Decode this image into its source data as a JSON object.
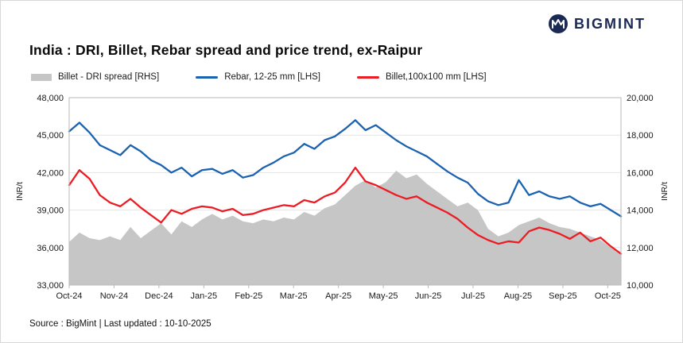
{
  "header": {
    "brand": "BIGMINT",
    "title": "India : DRI, Billet, Rebar spread and price trend, ex-Raipur"
  },
  "legend": {
    "items": [
      {
        "label": "Billet - DRI spread  [RHS]",
        "color": "#c6c6c6",
        "type": "area"
      },
      {
        "label": "Rebar, 12-25 mm [LHS]",
        "color": "#1b62b0",
        "type": "line"
      },
      {
        "label": "Billet,100x100 mm [LHS]",
        "color": "#ec1c24",
        "type": "line"
      }
    ]
  },
  "footer": {
    "source": "Source : BigMint | Last updated : 10-10-2025"
  },
  "colors": {
    "brand_navy": "#1b2a55",
    "rebar_blue": "#1b62b0",
    "billet_red": "#ec1c24",
    "spread_gray": "#c6c6c6",
    "grid": "#e4e4e4",
    "plot_border": "#b9b9b9"
  },
  "chart_data": {
    "type": "line",
    "title": "India : DRI, Billet, Rebar spread and price trend, ex-Raipur",
    "x_tick_labels": [
      "Oct-24",
      "Nov-24",
      "Dec-24",
      "Jan-25",
      "Feb-25",
      "Mar-25",
      "Apr-25",
      "May-25",
      "Jun-25",
      "Jul-25",
      "Aug-25",
      "Sep-25",
      "Oct-25"
    ],
    "left_axis": {
      "label": "INR/t",
      "min": 33000,
      "max": 48000,
      "ticks": [
        33000,
        36000,
        39000,
        42000,
        45000,
        48000
      ],
      "tick_labels": [
        "33,000",
        "36,000",
        "39,000",
        "42,000",
        "45,000",
        "48,000"
      ]
    },
    "right_axis": {
      "label": "INR/t",
      "min": 10000,
      "max": 20000,
      "ticks": [
        10000,
        12000,
        14000,
        16000,
        18000,
        20000
      ],
      "tick_labels": [
        "10,000",
        "12,000",
        "14,000",
        "16,000",
        "18,000",
        "20,000"
      ]
    },
    "grid": true,
    "legend_position": "top",
    "series": [
      {
        "name": "Billet - DRI spread [RHS]",
        "type": "area",
        "axis": "right",
        "color": "#c6c6c6",
        "values": [
          12300,
          12800,
          12500,
          12400,
          12600,
          12400,
          13100,
          12500,
          12900,
          13300,
          12700,
          13400,
          13100,
          13500,
          13800,
          13500,
          13700,
          13400,
          13300,
          13500,
          13400,
          13600,
          13500,
          13900,
          13700,
          14100,
          14300,
          14800,
          15300,
          15600,
          15200,
          15500,
          16100,
          15700,
          15900,
          15400,
          15000,
          14600,
          14200,
          14400,
          14000,
          13000,
          12600,
          12800,
          13200,
          13400,
          13600,
          13300,
          13100,
          13000,
          12800,
          12600,
          12400,
          12000,
          11600
        ]
      },
      {
        "name": "Rebar, 12-25 mm [LHS]",
        "type": "line",
        "axis": "left",
        "color": "#1b62b0",
        "values": [
          45300,
          46000,
          45200,
          44200,
          43800,
          43400,
          44200,
          43700,
          43000,
          42600,
          42000,
          42400,
          41700,
          42200,
          42300,
          41900,
          42200,
          41600,
          41800,
          42400,
          42800,
          43300,
          43600,
          44300,
          43900,
          44600,
          44900,
          45500,
          46200,
          45400,
          45800,
          45200,
          44600,
          44100,
          43700,
          43300,
          42700,
          42100,
          41600,
          41200,
          40300,
          39700,
          39400,
          39600,
          41400,
          40200,
          40500,
          40100,
          39900,
          40100,
          39600,
          39300,
          39500,
          39000,
          38500
        ]
      },
      {
        "name": "Billet,100x100 mm [LHS]",
        "type": "line",
        "axis": "left",
        "color": "#ec1c24",
        "values": [
          41000,
          42200,
          41500,
          40200,
          39600,
          39300,
          39900,
          39200,
          38600,
          38000,
          39000,
          38700,
          39100,
          39300,
          39200,
          38900,
          39100,
          38600,
          38700,
          39000,
          39200,
          39400,
          39300,
          39800,
          39600,
          40100,
          40400,
          41200,
          42400,
          41300,
          41000,
          40600,
          40200,
          39900,
          40100,
          39600,
          39200,
          38800,
          38300,
          37600,
          37000,
          36600,
          36300,
          36500,
          36400,
          37300,
          37600,
          37400,
          37100,
          36700,
          37200,
          36500,
          36800,
          36100,
          35500
        ]
      }
    ]
  }
}
